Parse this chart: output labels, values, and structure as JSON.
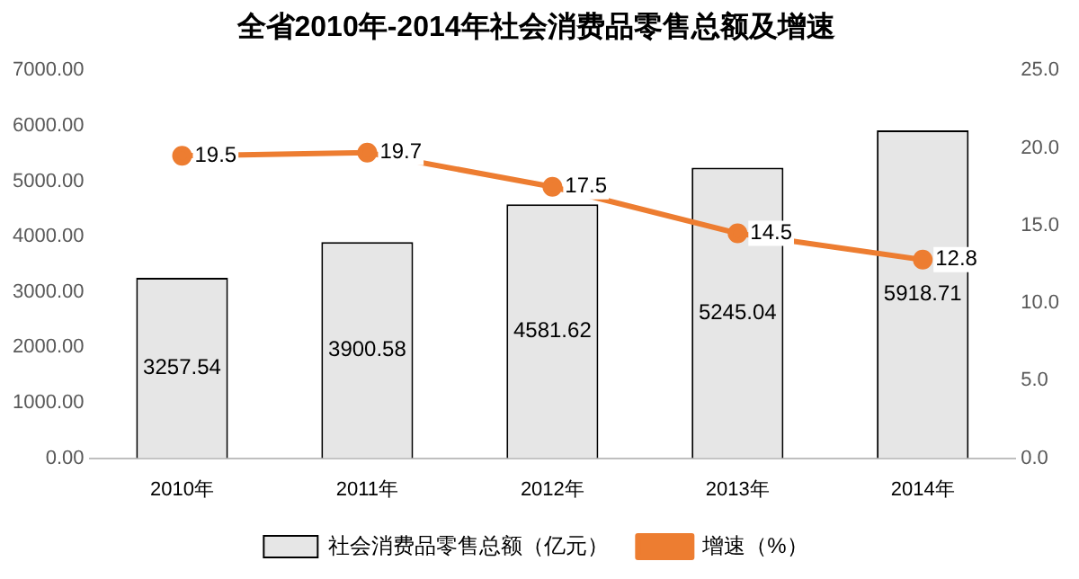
{
  "chart_data": {
    "type": "bar",
    "title": "全省2010年-2014年社会消费品零售总额及增速",
    "categories": [
      "2010年",
      "2011年",
      "2012年",
      "2013年",
      "2014年"
    ],
    "series": [
      {
        "name": "社会消费品零售总额（亿元）",
        "color": "#e6e6e6",
        "values": [
          3257.54,
          3900.58,
          4581.62,
          5245.04,
          5918.71
        ],
        "value_labels": [
          "3257.54",
          "3900.58",
          "4581.62",
          "5245.04",
          "5918.71"
        ]
      },
      {
        "name": "增速（%）",
        "type": "line",
        "axis": "y2",
        "color": "#ed7d31",
        "values": [
          19.5,
          19.7,
          17.5,
          14.5,
          12.8
        ],
        "value_labels": [
          "19.5",
          "19.7",
          "17.5",
          "14.5",
          "12.8"
        ]
      }
    ],
    "ylim": [
      0,
      7000
    ],
    "yticks": [
      {
        "value": 0,
        "label": "0.00"
      },
      {
        "value": 1000,
        "label": "1000.00"
      },
      {
        "value": 2000,
        "label": "2000.00"
      },
      {
        "value": 3000,
        "label": "3000.00"
      },
      {
        "value": 4000,
        "label": "4000.00"
      },
      {
        "value": 5000,
        "label": "5000.00"
      },
      {
        "value": 6000,
        "label": "6000.00"
      },
      {
        "value": 7000,
        "label": "7000.00"
      }
    ],
    "y2lim": [
      0,
      25
    ],
    "y2ticks": [
      {
        "value": 0,
        "label": "0.0"
      },
      {
        "value": 5,
        "label": "5.0"
      },
      {
        "value": 10,
        "label": "10.0"
      },
      {
        "value": 15,
        "label": "15.0"
      },
      {
        "value": 20,
        "label": "20.0"
      },
      {
        "value": 25,
        "label": "25.0"
      }
    ],
    "grid": false,
    "legend": "bottom",
    "marker": "circle"
  }
}
